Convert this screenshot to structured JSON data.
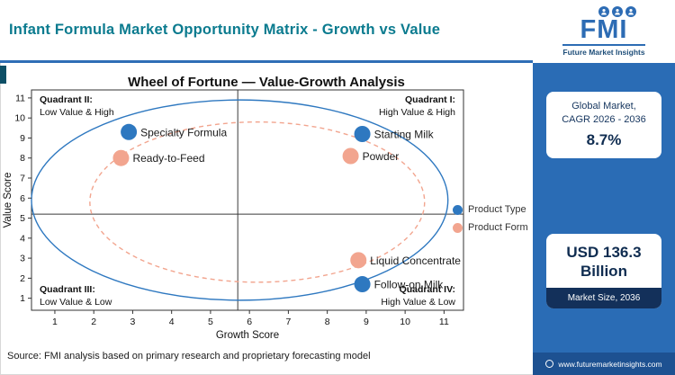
{
  "header": {
    "title": "Infant Formula Market Opportunity Matrix - Growth vs Value"
  },
  "logo": {
    "name": "FMI",
    "tagline": "Future Market Insights"
  },
  "sidebar": {
    "stat_card": {
      "line1": "Global Market,",
      "line2": "CAGR 2026 - 2036",
      "value": "8.7%"
    },
    "value_card": {
      "value_line1": "USD 136.3",
      "value_line2": "Billion",
      "caption": "Market Size, 2036"
    },
    "footer_url": "www.futuremarketinsights.com"
  },
  "source_note": "Source: FMI analysis based on primary research and proprietary forecasting model",
  "colors": {
    "brand_blue": "#2d6cb4",
    "sidebar_blue": "#2a6cb5",
    "header_title_teal": "#0b7b8f",
    "product_type_blue": "#2e78c0",
    "product_form_salmon": "#f2a58f"
  },
  "chart_data": {
    "type": "scatter",
    "title": "Wheel of Fortune — Value-Growth Analysis",
    "xlabel": "Growth Score",
    "ylabel": "Value Score",
    "xlim": [
      0.4,
      11.5
    ],
    "ylim": [
      0.4,
      11.4
    ],
    "xticks": [
      1,
      2,
      3,
      4,
      5,
      6,
      7,
      8,
      9,
      10,
      11
    ],
    "yticks": [
      1,
      2,
      3,
      4,
      5,
      6,
      7,
      8,
      9,
      10,
      11
    ],
    "grid": false,
    "quadrant_split": {
      "x": 5.7,
      "y": 5.2
    },
    "quadrants": [
      {
        "name": "Quadrant II:",
        "desc": "Low Value & High",
        "position": "top-left"
      },
      {
        "name": "Quadrant I:",
        "desc": "High Value & High",
        "position": "top-right"
      },
      {
        "name": "Quadrant III:",
        "desc": "Low Value & Low",
        "position": "bottom-left"
      },
      {
        "name": "Quadrant IV:",
        "desc": "High Value & Low",
        "position": "bottom-right"
      }
    ],
    "series": [
      {
        "name": "Product Type",
        "color": "#2e78c0",
        "points": [
          {
            "label": "Specialty Formula",
            "x": 2.9,
            "y": 9.3
          },
          {
            "label": "Starting Milk",
            "x": 8.9,
            "y": 9.2
          },
          {
            "label": "Follow-on Milk",
            "x": 8.9,
            "y": 1.7
          }
        ]
      },
      {
        "name": "Product Form",
        "color": "#f2a58f",
        "points": [
          {
            "label": "Ready-to-Feed",
            "x": 2.7,
            "y": 8.0
          },
          {
            "label": "Powder",
            "x": 8.6,
            "y": 8.1
          },
          {
            "label": "Liquid Concentrate",
            "x": 8.8,
            "y": 2.9
          }
        ]
      }
    ],
    "ellipses": [
      {
        "series": "Product Type",
        "cx": 5.75,
        "cy": 5.9,
        "rx": 5.35,
        "ry": 5.0,
        "color": "#2e78c0",
        "dashed": false
      },
      {
        "series": "Product Form",
        "cx": 6.2,
        "cy": 5.8,
        "rx": 4.3,
        "ry": 4.0,
        "color": "#f2a58f",
        "dashed": true
      }
    ],
    "legend": [
      {
        "label": "Product Type",
        "color": "#2e78c0"
      },
      {
        "label": "Product Form",
        "color": "#f2a58f"
      }
    ],
    "legend_position": "right-middle"
  }
}
